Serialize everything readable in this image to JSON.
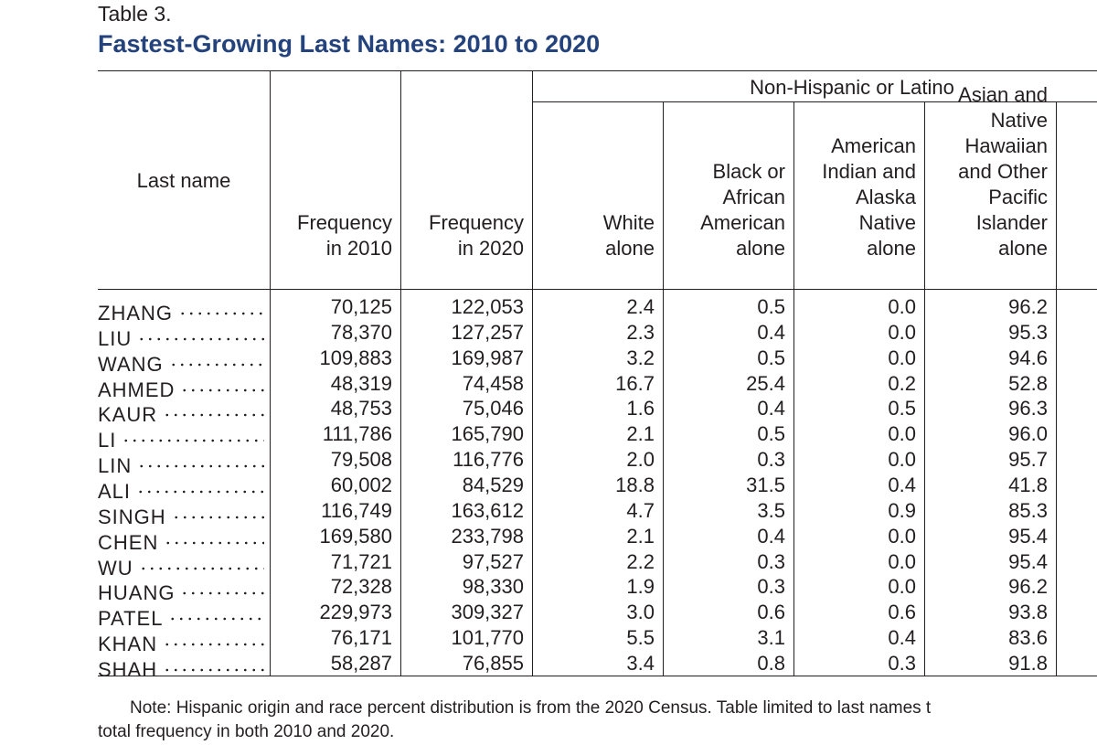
{
  "header": {
    "label": "Table 3.",
    "title": "Fastest-Growing Last Names: 2010 to 2020"
  },
  "table": {
    "group_header": "Non-Hispanic or Latino",
    "columns": [
      [
        "Last name"
      ],
      [
        "Frequency",
        "in 2010"
      ],
      [
        "Frequency",
        "in 2020"
      ],
      [
        "White",
        "alone"
      ],
      [
        "Black or",
        "African",
        "American",
        "alone"
      ],
      [
        "American",
        "Indian and",
        "Alaska",
        "Native",
        "alone"
      ],
      [
        "Asian and",
        "Native",
        "Hawaiian",
        "and Other",
        "Pacific",
        "Islander",
        "alone"
      ]
    ],
    "rows": [
      [
        "ZHANG",
        "70,125",
        "122,053",
        "2.4",
        "0.5",
        "0.0",
        "96.2"
      ],
      [
        "LIU",
        "78,370",
        "127,257",
        "2.3",
        "0.4",
        "0.0",
        "95.3"
      ],
      [
        "WANG",
        "109,883",
        "169,987",
        "3.2",
        "0.5",
        "0.0",
        "94.6"
      ],
      [
        "AHMED",
        "48,319",
        "74,458",
        "16.7",
        "25.4",
        "0.2",
        "52.8"
      ],
      [
        "KAUR",
        "48,753",
        "75,046",
        "1.6",
        "0.4",
        "0.5",
        "96.3"
      ],
      [
        "LI",
        "111,786",
        "165,790",
        "2.1",
        "0.5",
        "0.0",
        "96.0"
      ],
      [
        "LIN",
        "79,508",
        "116,776",
        "2.0",
        "0.3",
        "0.0",
        "95.7"
      ],
      [
        "ALI",
        "60,002",
        "84,529",
        "18.8",
        "31.5",
        "0.4",
        "41.8"
      ],
      [
        "SINGH",
        "116,749",
        "163,612",
        "4.7",
        "3.5",
        "0.9",
        "85.3"
      ],
      [
        "CHEN",
        "169,580",
        "233,798",
        "2.1",
        "0.4",
        "0.0",
        "95.4"
      ],
      [
        "WU",
        "71,721",
        "97,527",
        "2.2",
        "0.3",
        "0.0",
        "95.4"
      ],
      [
        "HUANG",
        "72,328",
        "98,330",
        "1.9",
        "0.3",
        "0.0",
        "96.2"
      ],
      [
        "PATEL",
        "229,973",
        "309,327",
        "3.0",
        "0.6",
        "0.6",
        "93.8"
      ],
      [
        "KHAN",
        "76,171",
        "101,770",
        "5.5",
        "3.1",
        "0.4",
        "83.6"
      ],
      [
        "SHAH",
        "58,287",
        "76,855",
        "3.4",
        "0.8",
        "0.3",
        "91.8"
      ]
    ]
  },
  "note": [
    "Note: Hispanic origin and race percent distribution is from the 2020 Census. Table limited to last names t",
    "total frequency in both 2010 and 2020."
  ]
}
